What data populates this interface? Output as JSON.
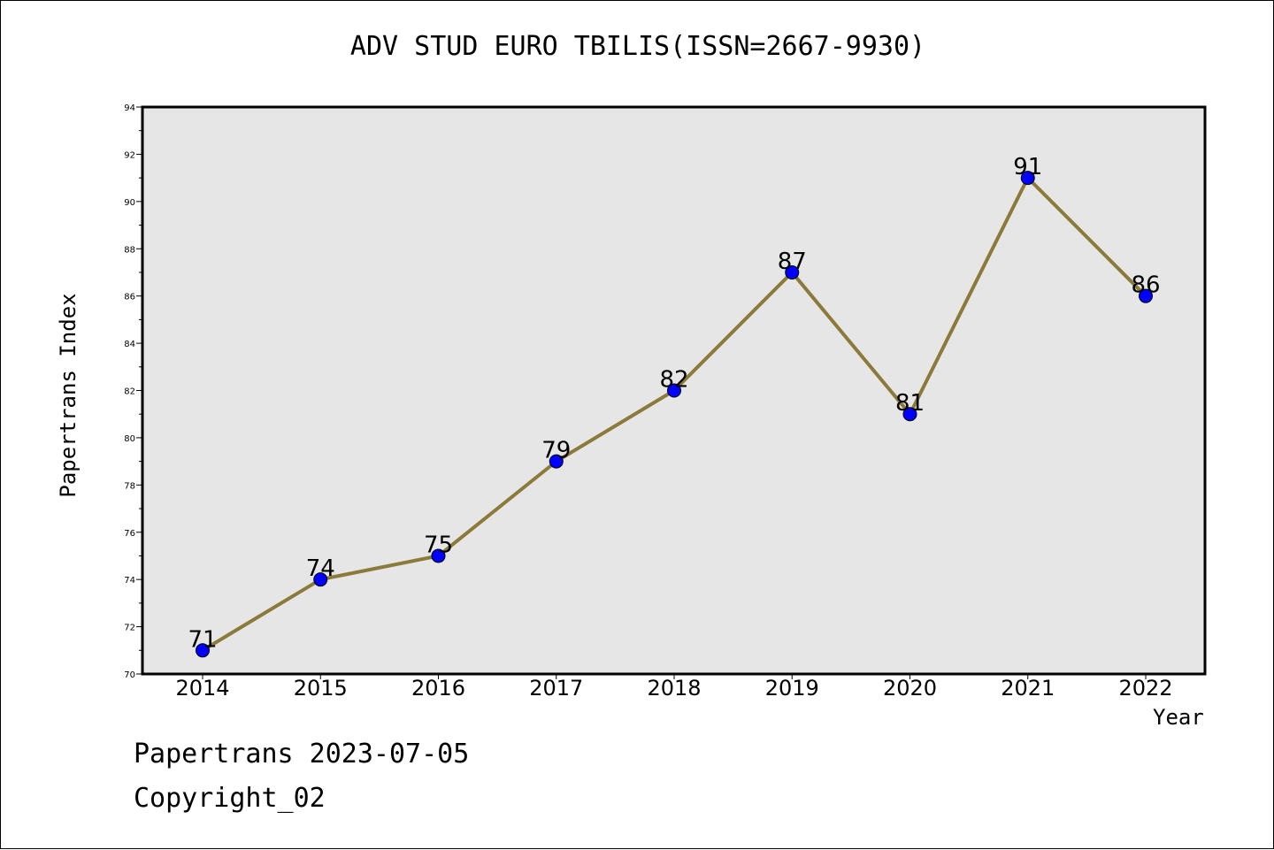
{
  "chart_data": {
    "type": "line",
    "title": "ADV STUD EURO TBILIS(ISSN=2667-9930)",
    "xlabel": "Year",
    "ylabel": "Papertrans Index",
    "x": [
      "2014",
      "2015",
      "2016",
      "2017",
      "2018",
      "2019",
      "2020",
      "2021",
      "2022"
    ],
    "series": [
      {
        "values": [
          71,
          74,
          75,
          79,
          82,
          87,
          81,
          91,
          86
        ]
      }
    ],
    "data_labels": [
      "71",
      "74",
      "75",
      "79",
      "82",
      "87",
      "81",
      "91",
      "86"
    ],
    "ylim": [
      70,
      94
    ],
    "yticks": [
      "70",
      "72",
      "74",
      "76",
      "78",
      "80",
      "82",
      "84",
      "86",
      "88",
      "90",
      "92",
      "94"
    ],
    "grid": false,
    "plot_background": "#e6e6e6",
    "line_color": "#8b7a3a",
    "marker_color": "#0000ff"
  },
  "footer": {
    "date_text": "Papertrans 2023-07-05",
    "copyright_text": "Copyright_02"
  }
}
